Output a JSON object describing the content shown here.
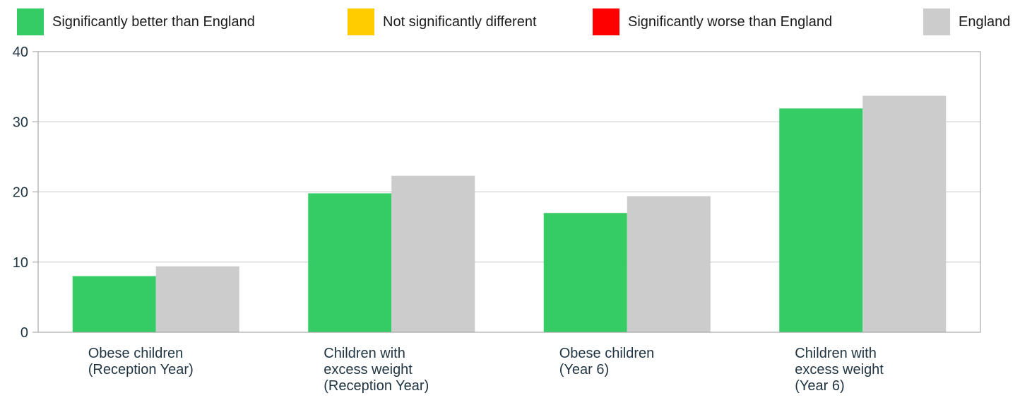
{
  "legend": [
    {
      "label": "Significantly better than England",
      "color": "#35CC66"
    },
    {
      "label": "Not significantly different",
      "color": "#FFCC00"
    },
    {
      "label": "Significantly worse than England",
      "color": "#FF0000"
    },
    {
      "label": "England",
      "color": "#CCCCCC"
    }
  ],
  "chart_data": {
    "type": "bar",
    "categories": [
      [
        "Obese children",
        "(Reception Year)"
      ],
      [
        "Children with",
        "excess weight",
        "(Reception Year)"
      ],
      [
        "Obese children",
        "(Year 6)"
      ],
      [
        "Children with",
        "excess weight",
        "(Year 6)"
      ]
    ],
    "series": [
      {
        "values": [
          8.0,
          19.8,
          17.0,
          31.9
        ],
        "colors": [
          "#35CC66",
          "#35CC66",
          "#35CC66",
          "#35CC66"
        ]
      },
      {
        "name": "England",
        "values": [
          9.4,
          22.3,
          19.4,
          33.7
        ],
        "colors": [
          "#CCCCCC",
          "#CCCCCC",
          "#CCCCCC",
          "#CCCCCC"
        ]
      }
    ],
    "ylim": [
      0,
      40
    ],
    "yticks": [
      0,
      10,
      20,
      30,
      40
    ],
    "grid": true,
    "legend_position": "top"
  }
}
